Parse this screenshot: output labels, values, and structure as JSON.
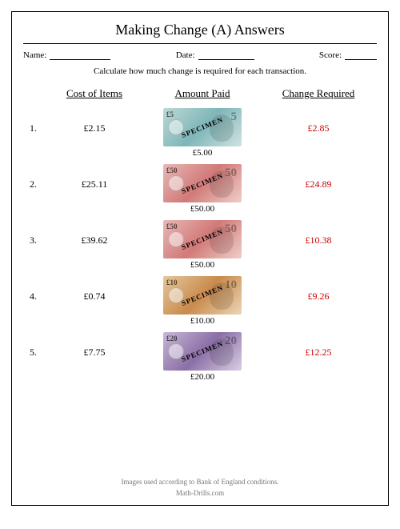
{
  "title": "Making Change (A) Answers",
  "meta": {
    "name_label": "Name:",
    "date_label": "Date:",
    "score_label": "Score:"
  },
  "instruction": "Calculate how much change is required for each transaction.",
  "headers": {
    "cost": "Cost of Items",
    "paid": "Amount Paid",
    "change": "Change Required"
  },
  "change_color": "#cc0000",
  "rows": [
    {
      "n": "1.",
      "cost": "£2.15",
      "paid": "£5.00",
      "change": "£2.85",
      "denom": "£5",
      "big": "5",
      "bg": "linear-gradient(135deg,#bcd9d4,#7fb6b9,#cfe3df)"
    },
    {
      "n": "2.",
      "cost": "£25.11",
      "paid": "£50.00",
      "change": "£24.89",
      "denom": "£50",
      "big": "50",
      "bg": "linear-gradient(135deg,#e9b8b6,#d17a78,#efcfc9)"
    },
    {
      "n": "3.",
      "cost": "£39.62",
      "paid": "£50.00",
      "change": "£10.38",
      "denom": "£50",
      "big": "50",
      "bg": "linear-gradient(135deg,#e9b8b6,#d17a78,#efcfc9)"
    },
    {
      "n": "4.",
      "cost": "£0.74",
      "paid": "£10.00",
      "change": "£9.26",
      "denom": "£10",
      "big": "10",
      "bg": "linear-gradient(135deg,#e6c79a,#c98b4e,#ecd6b5)"
    },
    {
      "n": "5.",
      "cost": "£7.75",
      "paid": "£20.00",
      "change": "£12.25",
      "denom": "£20",
      "big": "20",
      "bg": "linear-gradient(135deg,#c8b8d6,#8b6fa6,#d9cfe3)"
    }
  ],
  "specimen_label": "SPECIMEN",
  "footer1": "Images used according to Bank of England conditions.",
  "footer2": "Math-Drills.com"
}
